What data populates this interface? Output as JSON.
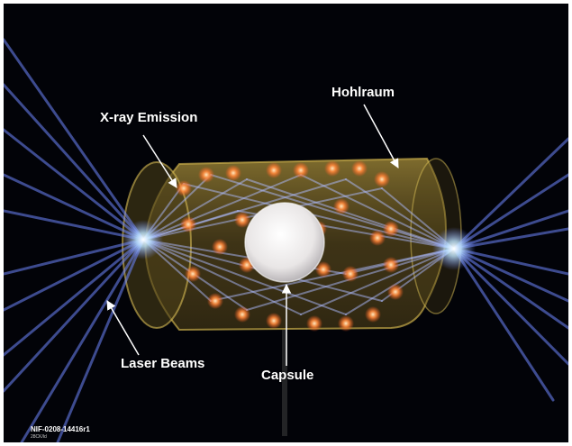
{
  "labels": {
    "xray": "X-ray Emission",
    "hohlraum": "Hohlraum",
    "laser": "Laser Beams",
    "capsule": "Capsule"
  },
  "caption": {
    "id": "NIF-0208-14416r1",
    "sub": "28CK/ld"
  },
  "colors": {
    "background": "#020308",
    "beam": "#6f86ff",
    "hohlraum": "#b49a3c",
    "hotspot": "#ff8a3c",
    "capsule": "#f3f3f3"
  }
}
